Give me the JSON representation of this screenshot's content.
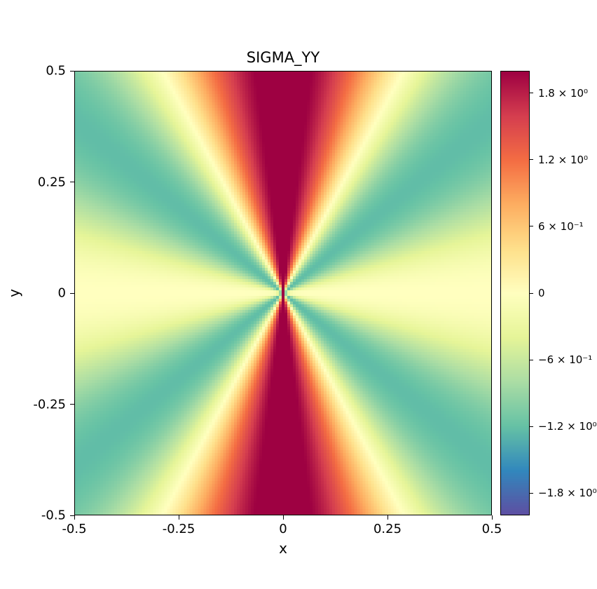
{
  "chart_data": {
    "type": "heatmap",
    "title": "SIGMA_YY",
    "xlabel": "x",
    "ylabel": "y",
    "xlim": [
      -0.5,
      0.5
    ],
    "ylim": [
      -0.5,
      0.5
    ],
    "colormap": "Spectral_r",
    "colormap_stops": [
      "#5e4fa2",
      "#3288bd",
      "#66c2a5",
      "#abdda4",
      "#e6f598",
      "#ffffbf",
      "#fee08b",
      "#fdae61",
      "#f46d43",
      "#d53e4f",
      "#9e0142"
    ],
    "field": "sigma_yy = -sin(2θ)·(3 + cos(4θ)... ) pattern (symmetric-log scaled)",
    "x_ticks": [
      {
        "value": -0.5,
        "label": "-0.5"
      },
      {
        "value": -0.25,
        "label": "-0.25"
      },
      {
        "value": 0,
        "label": "0"
      },
      {
        "value": 0.25,
        "label": "0.25"
      },
      {
        "value": 0.5,
        "label": "0.5"
      }
    ],
    "y_ticks": [
      {
        "value": 0.5,
        "label": "0.5"
      },
      {
        "value": 0.25,
        "label": "0.25"
      },
      {
        "value": 0,
        "label": "0"
      },
      {
        "value": -0.25,
        "label": "-0.25"
      },
      {
        "value": -0.5,
        "label": "-0.5"
      }
    ],
    "colorbar": {
      "range": [
        -2.0,
        2.0
      ],
      "ticks": [
        {
          "value": 1.8,
          "label": "1.8 × 10⁰"
        },
        {
          "value": 1.2,
          "label": "1.2 × 10⁰"
        },
        {
          "value": 0.6,
          "label": "6 × 10⁻¹"
        },
        {
          "value": 0,
          "label": "0"
        },
        {
          "value": -0.6,
          "label": "−6 × 10⁻¹"
        },
        {
          "value": -1.2,
          "label": "−1.2 × 10⁰"
        },
        {
          "value": -1.8,
          "label": "−1.8 × 10⁰"
        }
      ]
    }
  }
}
